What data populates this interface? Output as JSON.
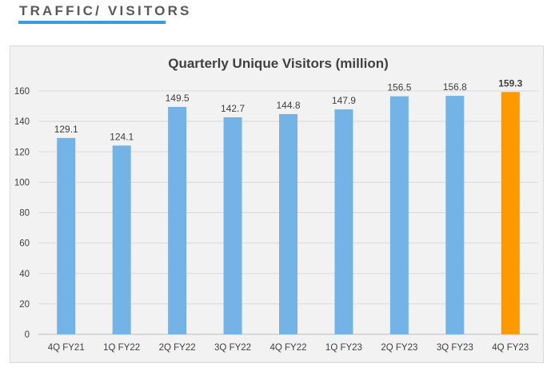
{
  "header": {
    "section_title": "TRAFFIC/ VISITORS"
  },
  "colors": {
    "accent": "#3a9bd8",
    "bar": "#74b3e5",
    "highlight_bar": "#ff9900",
    "panel_bg": "#f2f2f2"
  },
  "chart_data": {
    "type": "bar",
    "title": "Quarterly Unique Visitors (million)",
    "xlabel": "",
    "ylabel": "",
    "categories": [
      "4Q FY21",
      "1Q FY22",
      "2Q FY22",
      "3Q FY22",
      "4Q FY22",
      "1Q FY23",
      "2Q FY23",
      "3Q FY23",
      "4Q FY23"
    ],
    "values": [
      129.1,
      124.1,
      149.5,
      142.7,
      144.8,
      147.9,
      156.5,
      156.8,
      159.3
    ],
    "value_labels": [
      "129.1",
      "124.1",
      "149.5",
      "142.7",
      "144.8",
      "147.9",
      "156.5",
      "156.8",
      "159.3"
    ],
    "highlight_index": 8,
    "ylim": [
      0,
      160
    ],
    "yticks": [
      0,
      20,
      40,
      60,
      80,
      100,
      120,
      140,
      160
    ],
    "grid": true,
    "legend": "none"
  }
}
